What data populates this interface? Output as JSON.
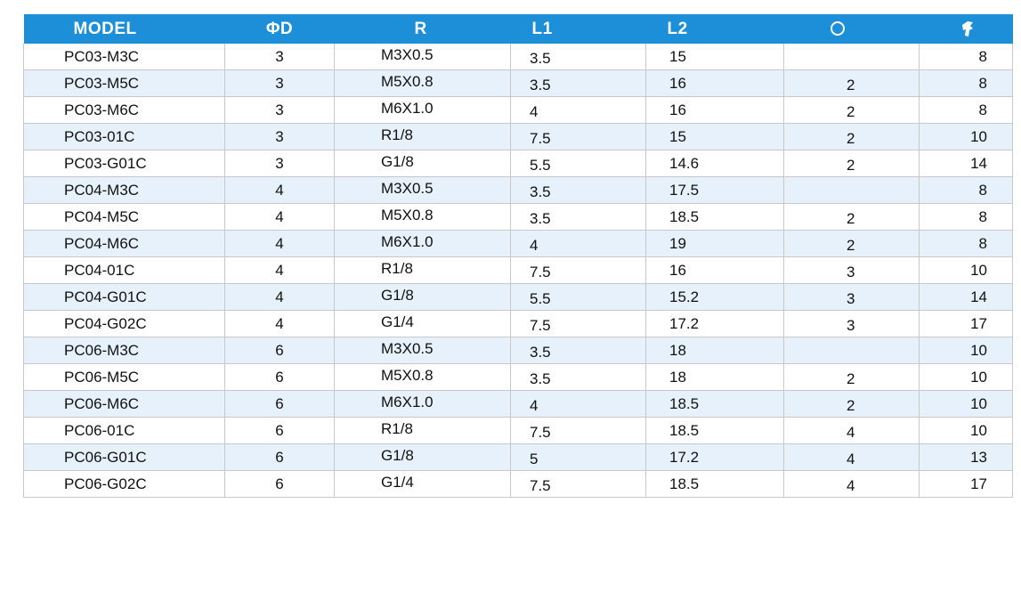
{
  "table": {
    "headers": {
      "model": "MODEL",
      "d": "ΦD",
      "r": "R",
      "l1": "L1",
      "l2": "L2",
      "o_ring_icon": "o-ring-icon",
      "torque_icon": "wrench-icon"
    },
    "rows": [
      {
        "model": "PC03-M3C",
        "d": "3",
        "r": "M3X0.5",
        "l1": "3.5",
        "l2": "15",
        "o": "",
        "w": "8"
      },
      {
        "model": "PC03-M5C",
        "d": "3",
        "r": "M5X0.8",
        "l1": "3.5",
        "l2": "16",
        "o": "2",
        "w": "8"
      },
      {
        "model": "PC03-M6C",
        "d": "3",
        "r": "M6X1.0",
        "l1": "4",
        "l2": "16",
        "o": "2",
        "w": "8"
      },
      {
        "model": "PC03-01C",
        "d": "3",
        "r": "R1/8",
        "l1": "7.5",
        "l2": "15",
        "o": "2",
        "w": "10"
      },
      {
        "model": "PC03-G01C",
        "d": "3",
        "r": "G1/8",
        "l1": "5.5",
        "l2": "14.6",
        "o": "2",
        "w": "14"
      },
      {
        "model": "PC04-M3C",
        "d": "4",
        "r": "M3X0.5",
        "l1": "3.5",
        "l2": "17.5",
        "o": "",
        "w": "8"
      },
      {
        "model": "PC04-M5C",
        "d": "4",
        "r": "M5X0.8",
        "l1": "3.5",
        "l2": "18.5",
        "o": "2",
        "w": "8"
      },
      {
        "model": "PC04-M6C",
        "d": "4",
        "r": "M6X1.0",
        "l1": "4",
        "l2": "19",
        "o": "2",
        "w": "8"
      },
      {
        "model": "PC04-01C",
        "d": "4",
        "r": "R1/8",
        "l1": "7.5",
        "l2": "16",
        "o": "3",
        "w": "10"
      },
      {
        "model": "PC04-G01C",
        "d": "4",
        "r": "G1/8",
        "l1": "5.5",
        "l2": "15.2",
        "o": "3",
        "w": "14"
      },
      {
        "model": "PC04-G02C",
        "d": "4",
        "r": "G1/4",
        "l1": "7.5",
        "l2": "17.2",
        "o": "3",
        "w": "17"
      },
      {
        "model": "PC06-M3C",
        "d": "6",
        "r": "M3X0.5",
        "l1": "3.5",
        "l2": "18",
        "o": "",
        "w": "10"
      },
      {
        "model": "PC06-M5C",
        "d": "6",
        "r": "M5X0.8",
        "l1": "3.5",
        "l2": "18",
        "o": "2",
        "w": "10"
      },
      {
        "model": "PC06-M6C",
        "d": "6",
        "r": "M6X1.0",
        "l1": "4",
        "l2": "18.5",
        "o": "2",
        "w": "10"
      },
      {
        "model": "PC06-01C",
        "d": "6",
        "r": "R1/8",
        "l1": "7.5",
        "l2": "18.5",
        "o": "4",
        "w": "10"
      },
      {
        "model": "PC06-G01C",
        "d": "6",
        "r": "G1/8",
        "l1": "5",
        "l2": "17.2",
        "o": "4",
        "w": "13"
      },
      {
        "model": "PC06-G02C",
        "d": "6",
        "r": "G1/4",
        "l1": "7.5",
        "l2": "18.5",
        "o": "4",
        "w": "17"
      }
    ]
  },
  "colors": {
    "header_bg": "#1c8fd8",
    "alt_row_bg": "#e6f1fb",
    "grid_line": "#c8c8c8"
  }
}
